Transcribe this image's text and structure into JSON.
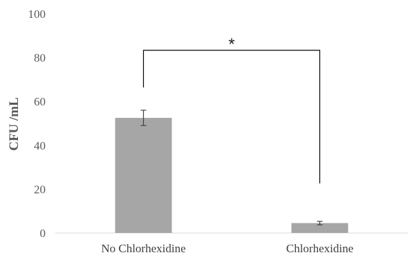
{
  "chart_data": {
    "type": "bar",
    "categories": [
      "No Chlorhexidine",
      "Chlorhexidine"
    ],
    "values": [
      52.5,
      4.5
    ],
    "errors": [
      3.5,
      0.8
    ],
    "ylabel": "CFU /mL",
    "xlabel": "",
    "ylim": [
      0,
      100
    ],
    "yticks": [
      "0",
      "20",
      "40",
      "60",
      "80",
      "100"
    ],
    "significance_label": "*",
    "grid": false,
    "bar_color": "#a6a6a6",
    "error_bar_color": "#404040",
    "bracket_color": "#000000"
  }
}
